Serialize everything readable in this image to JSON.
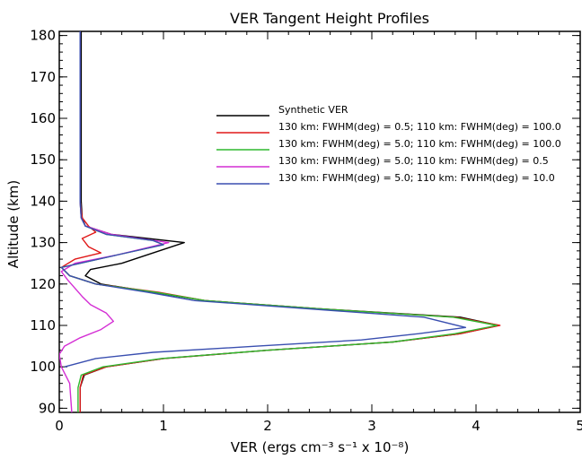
{
  "chart_data": {
    "type": "line",
    "title": "VER Tangent Height Profiles",
    "xlabel": "VER (ergs cm⁻³ s⁻¹ x 10⁻⁸)",
    "ylabel": "Altitude (km)",
    "xlim": [
      0,
      5
    ],
    "ylim": [
      89,
      181
    ],
    "xticks": [
      0,
      1,
      2,
      3,
      4,
      5
    ],
    "yticks": [
      90,
      100,
      110,
      120,
      130,
      140,
      150,
      160,
      170,
      180
    ],
    "legend_position": "upper-right",
    "series": [
      {
        "name": "Synthetic VER",
        "color": "#000000",
        "points": [
          [
            0.2,
            89
          ],
          [
            0.2,
            95
          ],
          [
            0.24,
            98
          ],
          [
            0.45,
            100
          ],
          [
            1.0,
            102
          ],
          [
            2.0,
            104
          ],
          [
            3.2,
            106
          ],
          [
            3.85,
            108
          ],
          [
            4.22,
            110
          ],
          [
            3.85,
            112
          ],
          [
            2.5,
            114
          ],
          [
            1.4,
            116
          ],
          [
            0.9,
            118
          ],
          [
            0.4,
            120
          ],
          [
            0.25,
            122
          ],
          [
            0.3,
            123.5
          ],
          [
            0.6,
            125
          ],
          [
            1.2,
            130
          ],
          [
            0.5,
            132
          ],
          [
            0.25,
            134
          ],
          [
            0.22,
            136
          ],
          [
            0.21,
            140
          ],
          [
            0.21,
            150
          ],
          [
            0.21,
            160
          ],
          [
            0.21,
            170
          ],
          [
            0.21,
            181
          ]
        ]
      },
      {
        "name": "130 km: FWHM(deg) = 0.5; 110 km: FWHM(deg) = 100.0",
        "color": "#e01818",
        "points": [
          [
            0.2,
            89
          ],
          [
            0.2,
            95
          ],
          [
            0.23,
            98
          ],
          [
            0.45,
            100
          ],
          [
            1.0,
            102
          ],
          [
            2.0,
            104
          ],
          [
            3.2,
            106
          ],
          [
            3.85,
            108
          ],
          [
            4.23,
            110
          ],
          [
            3.8,
            112
          ],
          [
            2.5,
            114
          ],
          [
            1.4,
            116
          ],
          [
            0.95,
            118
          ],
          [
            0.35,
            120
          ],
          [
            0.1,
            122
          ],
          [
            0.02,
            124
          ],
          [
            0.15,
            126
          ],
          [
            0.4,
            127.5
          ],
          [
            0.28,
            129
          ],
          [
            0.22,
            131
          ],
          [
            0.35,
            132.5
          ],
          [
            0.28,
            134
          ],
          [
            0.22,
            136
          ],
          [
            0.2,
            140
          ],
          [
            0.2,
            150
          ],
          [
            0.2,
            160
          ],
          [
            0.2,
            170
          ],
          [
            0.2,
            181
          ]
        ]
      },
      {
        "name": "130 km: FWHM(deg) = 5.0; 110 km: FWHM(deg) = 100.0",
        "color": "#2eb82e",
        "points": [
          [
            0.18,
            89
          ],
          [
            0.18,
            95
          ],
          [
            0.21,
            98
          ],
          [
            0.42,
            100
          ],
          [
            0.98,
            102
          ],
          [
            2.0,
            104
          ],
          [
            3.2,
            106
          ],
          [
            3.8,
            108
          ],
          [
            4.2,
            110
          ],
          [
            3.78,
            112
          ],
          [
            2.5,
            114
          ],
          [
            1.4,
            116
          ],
          [
            0.92,
            118
          ],
          [
            0.35,
            120
          ],
          [
            0.1,
            122
          ],
          [
            0.02,
            124
          ],
          [
            0.2,
            125
          ],
          [
            0.55,
            127
          ],
          [
            1.0,
            129.5
          ],
          [
            0.9,
            130.5
          ],
          [
            0.45,
            132
          ],
          [
            0.25,
            134
          ],
          [
            0.21,
            136
          ],
          [
            0.2,
            140
          ],
          [
            0.2,
            150
          ],
          [
            0.2,
            160
          ],
          [
            0.2,
            170
          ],
          [
            0.2,
            181
          ]
        ]
      },
      {
        "name": "130 km: FWHM(deg) = 5.0; 110 km: FWHM(deg) = 0.5",
        "color": "#d42ed4",
        "points": [
          [
            0.12,
            89
          ],
          [
            0.1,
            96
          ],
          [
            0.02,
            100
          ],
          [
            0.0,
            103
          ],
          [
            0.05,
            105
          ],
          [
            0.2,
            107
          ],
          [
            0.4,
            109
          ],
          [
            0.52,
            111
          ],
          [
            0.45,
            113
          ],
          [
            0.3,
            115
          ],
          [
            0.22,
            117
          ],
          [
            0.15,
            119
          ],
          [
            0.08,
            121
          ],
          [
            0.02,
            123
          ],
          [
            0.15,
            125
          ],
          [
            0.55,
            127
          ],
          [
            1.05,
            130
          ],
          [
            0.5,
            132
          ],
          [
            0.25,
            134
          ],
          [
            0.21,
            136
          ],
          [
            0.2,
            140
          ],
          [
            0.2,
            150
          ],
          [
            0.2,
            160
          ],
          [
            0.2,
            170
          ],
          [
            0.2,
            181
          ]
        ]
      },
      {
        "name": "130 km: FWHM(deg) = 5.0; 110 km: FWHM(deg) = 10.0",
        "color": "#3a4fb0",
        "points": [
          [
            0.05,
            100
          ],
          [
            0.35,
            102
          ],
          [
            0.9,
            103.5
          ],
          [
            1.9,
            105
          ],
          [
            2.9,
            106.5
          ],
          [
            3.45,
            108
          ],
          [
            3.9,
            109.5
          ],
          [
            3.5,
            112
          ],
          [
            2.4,
            114
          ],
          [
            1.3,
            116
          ],
          [
            0.85,
            118
          ],
          [
            0.35,
            120
          ],
          [
            0.1,
            122
          ],
          [
            0.02,
            124
          ],
          [
            0.2,
            125
          ],
          [
            0.55,
            127
          ],
          [
            1.0,
            129.5
          ],
          [
            0.9,
            130.5
          ],
          [
            0.45,
            132
          ],
          [
            0.25,
            134
          ],
          [
            0.21,
            136
          ],
          [
            0.2,
            140
          ],
          [
            0.2,
            150
          ],
          [
            0.2,
            160
          ],
          [
            0.2,
            170
          ],
          [
            0.2,
            181
          ]
        ]
      }
    ]
  }
}
